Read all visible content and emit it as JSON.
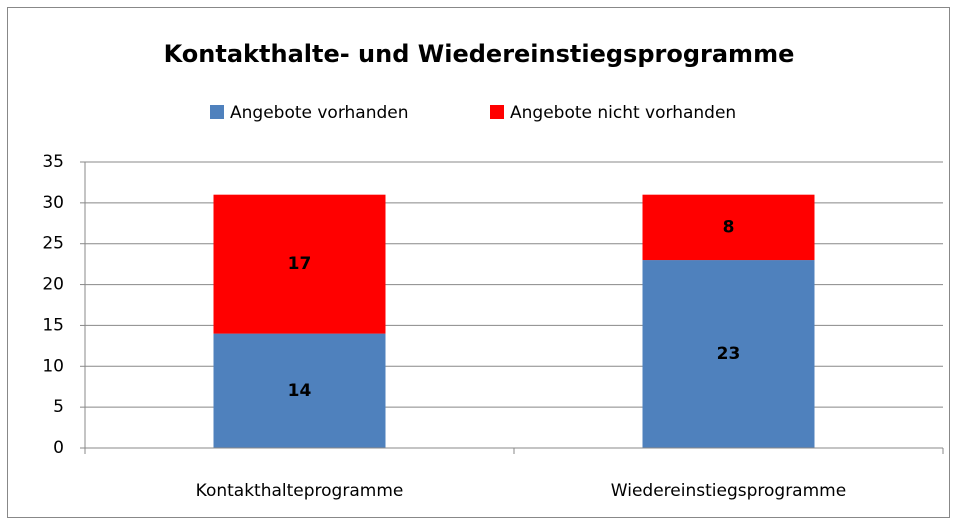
{
  "chart_data": {
    "type": "stacked-bar",
    "title": "Kontakthalte- und Wiedereinstiegsprogramme",
    "categories": [
      "Kontakthalteprogramme",
      "Wiedereinstiegsprogramme"
    ],
    "series": [
      {
        "name": "Angebote vorhanden",
        "color": "#4f81bd",
        "values": [
          14,
          23
        ]
      },
      {
        "name": "Angebote nicht vorhanden",
        "color": "#ff0000",
        "values": [
          17,
          8
        ]
      }
    ],
    "ylim": [
      0,
      35
    ],
    "yticks": [
      0,
      5,
      10,
      15,
      20,
      25,
      30,
      35
    ],
    "grid": true,
    "legend": "top"
  }
}
